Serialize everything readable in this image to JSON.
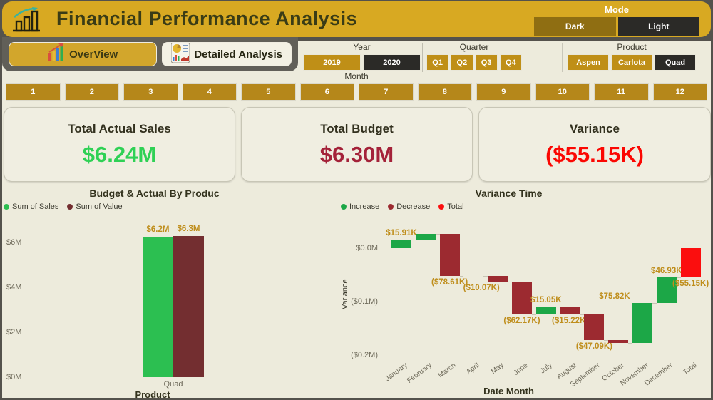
{
  "header": {
    "title": "Financial Performance Analysis",
    "mode": {
      "label": "Mode",
      "options": [
        {
          "label": "Dark",
          "style": "olive"
        },
        {
          "label": "Light",
          "style": "dark"
        }
      ]
    }
  },
  "nav": {
    "tabs": [
      {
        "label": "OverView",
        "active": true
      },
      {
        "label": "Detailed Analysis",
        "active": false
      }
    ]
  },
  "filters": {
    "year": {
      "label": "Year",
      "options": [
        {
          "label": "2019",
          "style": "gold"
        },
        {
          "label": "2020",
          "style": "dark"
        }
      ]
    },
    "quarter": {
      "label": "Quarter",
      "options": [
        {
          "label": "Q1",
          "style": "gold"
        },
        {
          "label": "Q2",
          "style": "gold"
        },
        {
          "label": "Q3",
          "style": "gold"
        },
        {
          "label": "Q4",
          "style": "gold"
        }
      ]
    },
    "product": {
      "label": "Product",
      "options": [
        {
          "label": "Aspen",
          "style": "gold"
        },
        {
          "label": "Carlota",
          "style": "gold"
        },
        {
          "label": "Quad",
          "style": "dark"
        }
      ]
    },
    "month": {
      "label": "Month",
      "options": [
        "1",
        "2",
        "3",
        "4",
        "5",
        "6",
        "7",
        "8",
        "9",
        "10",
        "11",
        "12"
      ]
    }
  },
  "kpis": [
    {
      "title": "Total Actual Sales",
      "value": "$6.24M",
      "color": "#2fd155"
    },
    {
      "title": "Total Budget",
      "value": "$6.30M",
      "color": "#a42239"
    },
    {
      "title": "Variance",
      "value": "($55.15K)",
      "color": "#fb0702"
    }
  ],
  "chart_data": [
    {
      "type": "bar",
      "title": "Budget & Actual By Produc",
      "categories": [
        "Quad"
      ],
      "series": [
        {
          "name": "Sum of Sales",
          "value_m": 6.24,
          "data_label": "$6.2M",
          "color": "#2cbf51"
        },
        {
          "name": "Sum of Value",
          "value_m": 6.3,
          "data_label": "$6.3M",
          "color": "#732e30"
        }
      ],
      "xlabel": "Product",
      "y_ticks": [
        "$6M",
        "$4M",
        "$2M",
        "$0M"
      ],
      "y_tick_values_m": [
        6,
        4,
        2,
        0
      ],
      "ylim": [
        0,
        7
      ],
      "legend_position": "top-left",
      "grid": false
    },
    {
      "type": "waterfall",
      "title": "Variance Time",
      "xlabel": "Date Month",
      "ylabel": "Variance",
      "legend": [
        {
          "label": "Increase",
          "color": "#1ca747"
        },
        {
          "label": "Decrease",
          "color": "#9c2a30"
        },
        {
          "label": "Total",
          "color": "#fb0e0e"
        }
      ],
      "categories": [
        "January",
        "February",
        "March",
        "April",
        "May",
        "June",
        "July",
        "August",
        "September",
        "October",
        "November",
        "December",
        "Total"
      ],
      "values_k": [
        15.91,
        10.5,
        -78.61,
        0,
        -10.07,
        -62.17,
        15.05,
        -15.22,
        -47.09,
        -6.2,
        75.82,
        46.93,
        -55.15
      ],
      "data_labels": [
        "$15.91K",
        "",
        "($78.61K)",
        "",
        "($10.07K)",
        "($62.17K)",
        "$15.05K",
        "($15.22K)",
        "($47.09K)",
        "",
        "$75.82K",
        "$46.93K",
        "($55.15K)"
      ],
      "y_ticks": [
        "$0.0M",
        "($0.1M)",
        "($0.2M)"
      ],
      "y_tick_values_m": [
        0,
        -0.1,
        -0.2
      ],
      "ylim_m": [
        -0.25,
        0.05
      ],
      "grid": false
    }
  ],
  "colors": {
    "header_gold": "#d8a922",
    "slicer_gold": "#bf8f17",
    "month_gold": "#b5871a",
    "dark_button": "#2b2a27",
    "olive_button": "#8f6e12",
    "background_cream": "#edebdc",
    "card_cream": "#f0eee1",
    "increase_green": "#1ca747",
    "decrease_maroon": "#9c2a30",
    "total_red": "#fb0e0e",
    "data_label_gold": "#bf8e1c"
  }
}
